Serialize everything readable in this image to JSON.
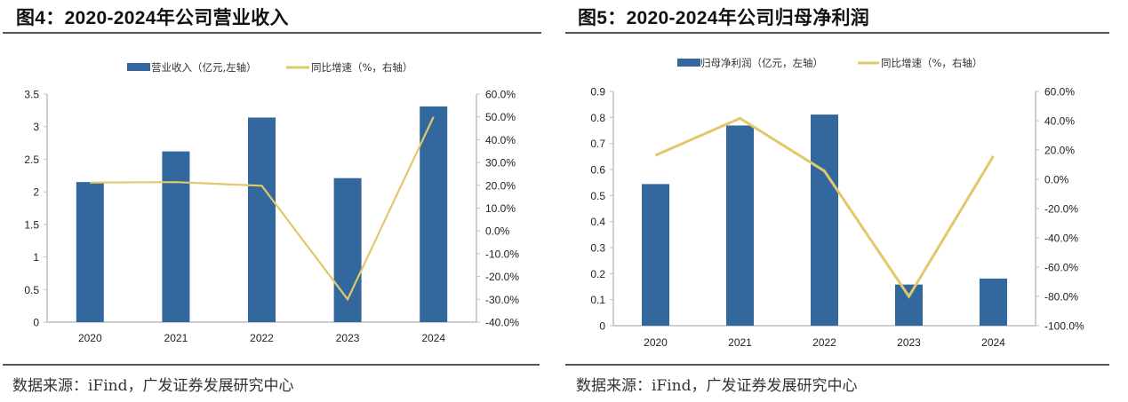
{
  "colors": {
    "bar": "#33689e",
    "line": "#e2c76b",
    "axis": "#bfbfbf",
    "rule": "#555555"
  },
  "chart_data": [
    {
      "type": "bar+line",
      "title": "图4：2020-2024年公司营业收入",
      "categories": [
        "2020",
        "2021",
        "2022",
        "2023",
        "2024"
      ],
      "series": [
        {
          "name": "营业收入（亿元,左轴）",
          "type": "bar",
          "axis": "left",
          "values": [
            2.15,
            2.62,
            3.14,
            2.21,
            3.31
          ]
        },
        {
          "name": "同比增速（%，右轴）",
          "type": "line",
          "axis": "right",
          "values": [
            21.2,
            21.4,
            19.8,
            -30.0,
            50.0
          ]
        }
      ],
      "left_axis": {
        "range": [
          0,
          3.5
        ],
        "ticks": [
          "0",
          "0.5",
          "1",
          "1.5",
          "2",
          "2.5",
          "3",
          "3.5"
        ]
      },
      "right_axis": {
        "range": [
          -40,
          60
        ],
        "ticks": [
          "-40.0%",
          "-30.0%",
          "-20.0%",
          "-10.0%",
          "0.0%",
          "10.0%",
          "20.0%",
          "30.0%",
          "40.0%",
          "50.0%",
          "60.0%"
        ]
      },
      "legend_position": "top",
      "grid": false,
      "source": "数据来源：iFind，广发证券发展研究中心"
    },
    {
      "type": "bar+line",
      "title": "图5：2020-2024年公司归母净利润",
      "categories": [
        "2020",
        "2021",
        "2022",
        "2023",
        "2024"
      ],
      "series": [
        {
          "name": "归母净利润（亿元，左轴）",
          "type": "bar",
          "axis": "left",
          "values": [
            0.544,
            0.769,
            0.811,
            0.158,
            0.181
          ]
        },
        {
          "name": "同比增速（%，右轴）",
          "type": "line",
          "axis": "right",
          "values": [
            16.4,
            41.6,
            5.6,
            -80.0,
            15.8
          ]
        }
      ],
      "left_axis": {
        "range": [
          0,
          0.9
        ],
        "ticks": [
          "0",
          "0.1",
          "0.2",
          "0.3",
          "0.4",
          "0.5",
          "0.6",
          "0.7",
          "0.8",
          "0.9"
        ]
      },
      "right_axis": {
        "range": [
          -100,
          60
        ],
        "ticks": [
          "-100.0%",
          "-80.0%",
          "-60.0%",
          "-40.0%",
          "-20.0%",
          "0.0%",
          "20.0%",
          "40.0%",
          "60.0%"
        ]
      },
      "legend_position": "top",
      "grid": false,
      "source": "数据来源：iFind，广发证券发展研究中心"
    }
  ]
}
